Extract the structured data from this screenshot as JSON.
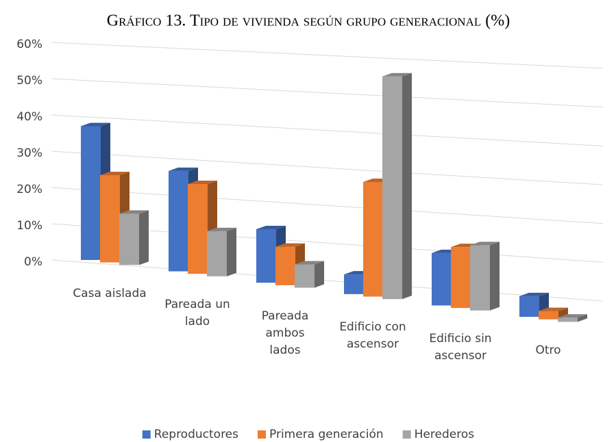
{
  "chart_data": {
    "type": "bar3d",
    "title": "Gráfico 13. Tipo de vivienda según grupo generacional (%)",
    "categories": [
      "Casa aislada",
      "Pareada un lado",
      "Pareada ambos lados",
      "Edificio con ascensor",
      "Edificio sin ascensor",
      "Otro"
    ],
    "series": [
      {
        "name": "Reproductores",
        "color": "#4472c4",
        "values": [
          37,
          27,
          14,
          5,
          13,
          5
        ]
      },
      {
        "name": "Primera generación",
        "color": "#ed7d31",
        "values": [
          24,
          24,
          10,
          29,
          15,
          2
        ]
      },
      {
        "name": "Herederos",
        "color": "#a5a5a5",
        "values": [
          14,
          12,
          6,
          56,
          16,
          1
        ]
      }
    ],
    "ylim": [
      0,
      60
    ],
    "yticks": [
      {
        "value": 0,
        "label": "0%"
      },
      {
        "value": 10,
        "label": "10%"
      },
      {
        "value": 20,
        "label": "20%"
      },
      {
        "value": 30,
        "label": "30%"
      },
      {
        "value": 40,
        "label": "40%"
      },
      {
        "value": 50,
        "label": "50%"
      },
      {
        "value": 60,
        "label": "60%"
      }
    ],
    "grid": true,
    "legend": "bottom"
  }
}
